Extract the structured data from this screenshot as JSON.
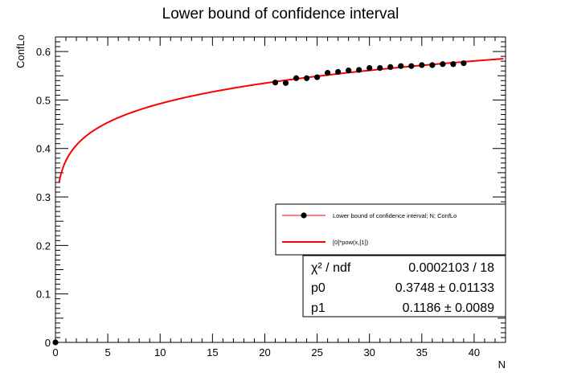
{
  "chart_data": {
    "type": "scatter",
    "title": "Lower bound of confidence interval",
    "xlabel": "N",
    "ylabel": "ConfLo",
    "xlim": [
      0,
      43
    ],
    "ylim": [
      0,
      0.63
    ],
    "x_ticks": [
      0,
      5,
      10,
      15,
      20,
      25,
      30,
      35,
      40
    ],
    "y_ticks": [
      0,
      0.1,
      0.2,
      0.3,
      0.4,
      0.5,
      0.6
    ],
    "series": [
      {
        "name": "Lower bound of confidence interval; N; ConfLo",
        "kind": "points",
        "color": "#000000",
        "x": [
          21,
          22,
          23,
          24,
          25,
          26,
          27,
          28,
          29,
          30,
          31,
          32,
          33,
          34,
          35,
          36,
          37,
          38,
          39
        ],
        "y": [
          0.536,
          0.535,
          0.545,
          0.545,
          0.547,
          0.556,
          0.558,
          0.561,
          0.562,
          0.566,
          0.566,
          0.568,
          0.57,
          0.57,
          0.572,
          0.572,
          0.574,
          0.574,
          0.576
        ]
      },
      {
        "name": "[0]*pow(x,[1])",
        "kind": "fit-curve",
        "color": "#ff0000",
        "formula": "[0]*pow(x,[1])",
        "params": [
          0.3748,
          0.1186
        ],
        "x_range": [
          0.35,
          42.8
        ]
      }
    ],
    "legend": {
      "position": "right",
      "entries": [
        {
          "label": "Lower bound of confidence interval; N; ConfLo",
          "marker": "point-line"
        },
        {
          "label": "[0]*pow(x,[1])",
          "marker": "line"
        }
      ]
    },
    "stats": {
      "position": "bottom-right",
      "rows": [
        {
          "label": "χ² / ndf",
          "value": "0.0002103 / 18"
        },
        {
          "label": "p0",
          "value": "0.3748 ± 0.01133"
        },
        {
          "label": "p1",
          "value": "0.1186 ± 0.0089"
        }
      ]
    },
    "grid": false
  }
}
